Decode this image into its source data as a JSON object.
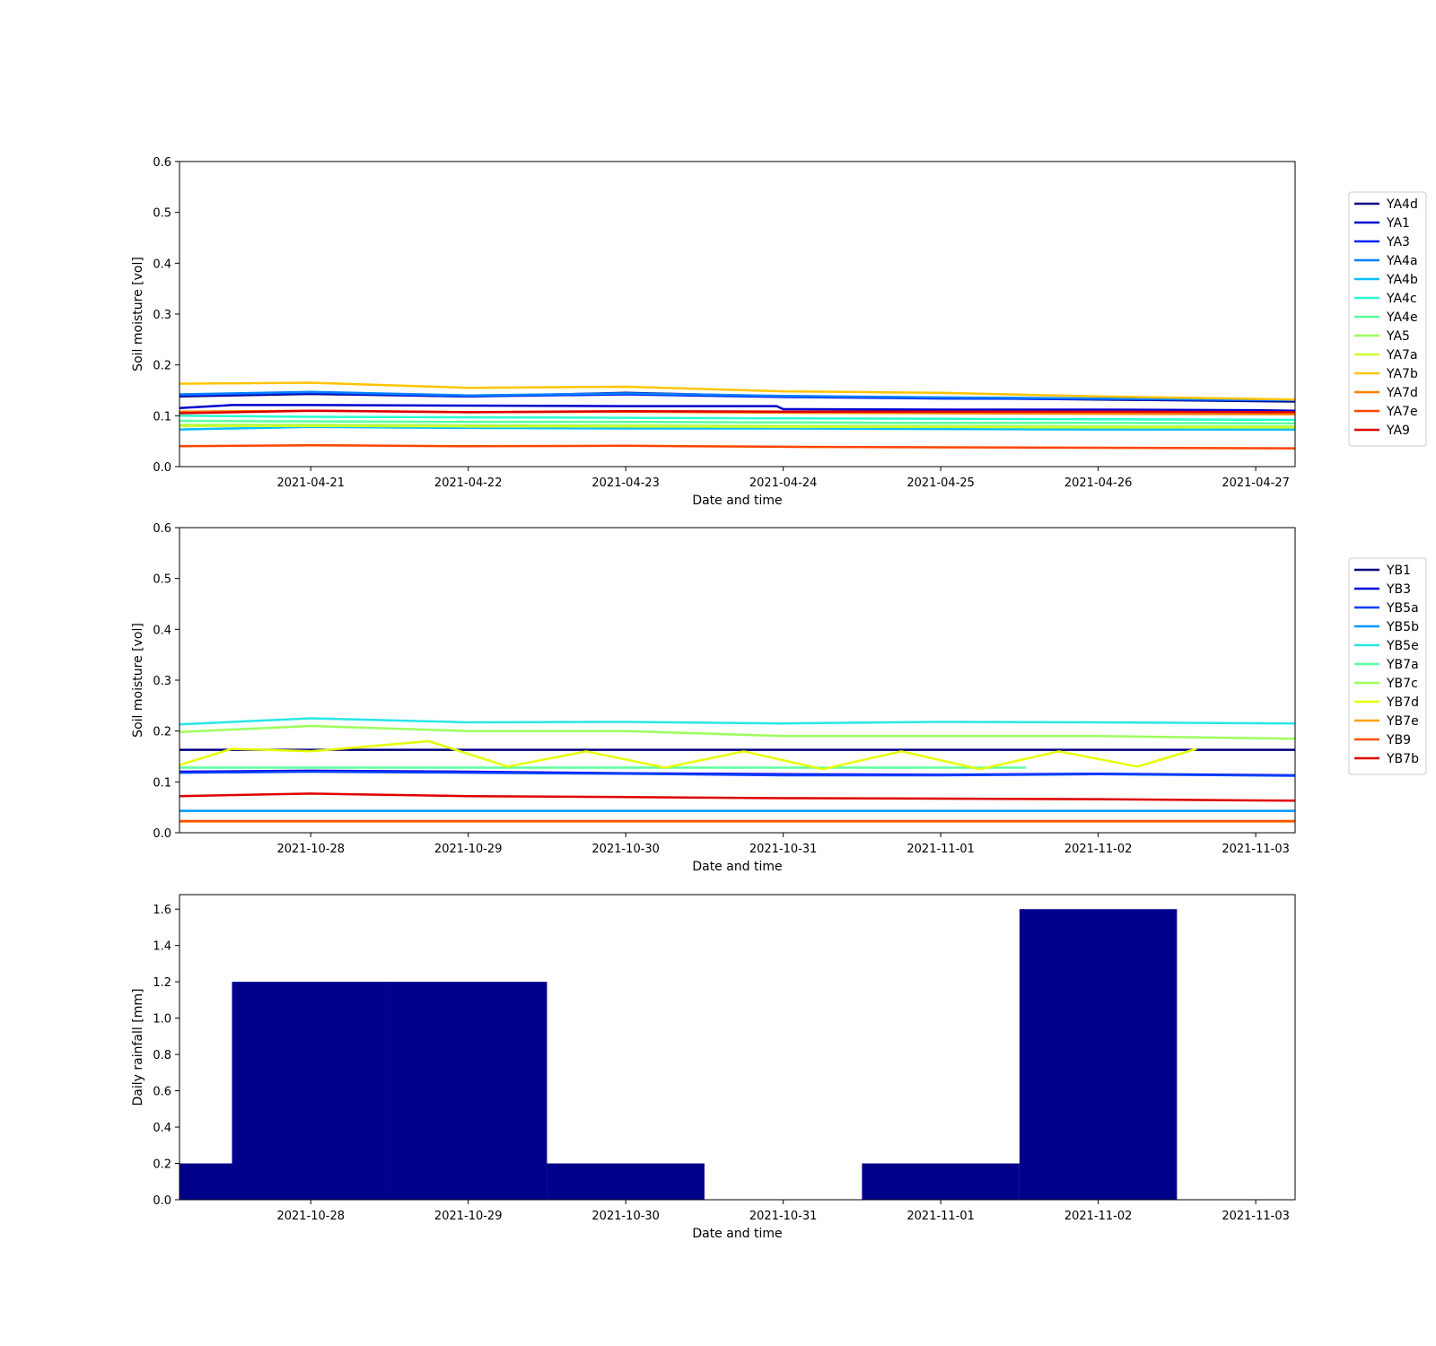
{
  "chart_data": [
    {
      "type": "line",
      "xlabel": "Date and time",
      "ylabel": "Soil moisture [vol]",
      "x_ticks": [
        "2021-04-21",
        "2021-04-22",
        "2021-04-23",
        "2021-04-24",
        "2021-04-25",
        "2021-04-26",
        "2021-04-27"
      ],
      "xlim": [
        "2021-04-20 04:00",
        "2021-04-27 06:00"
      ],
      "y_ticks": [
        0.0,
        0.1,
        0.2,
        0.3,
        0.4,
        0.5,
        0.6
      ],
      "ylim": [
        0.0,
        0.6
      ],
      "legend_position": "right",
      "series": [
        {
          "name": "YA4d",
          "color": "#000080",
          "x": [
            "2021-04-20 04:00",
            "2021-04-21 00:00",
            "2021-04-22 00:00",
            "2021-04-23 00:00",
            "2021-04-24 00:00",
            "2021-04-25 00:00",
            "2021-04-26 00:00",
            "2021-04-27 06:00"
          ],
          "values": [
            0.138,
            0.143,
            0.138,
            0.145,
            0.138,
            0.135,
            0.132,
            0.128
          ]
        },
        {
          "name": "YA1",
          "color": "#0000d0",
          "x": [
            "2021-04-20 04:00",
            "2021-04-20 12:00",
            "2021-04-21 00:00",
            "2021-04-22 00:00",
            "2021-04-23 00:00",
            "2021-04-23 23:00",
            "2021-04-24 00:00",
            "2021-04-25 00:00",
            "2021-04-26 00:00",
            "2021-04-27 00:00",
            "2021-04-27 06:00"
          ],
          "values": [
            0.115,
            0.121,
            0.121,
            0.12,
            0.119,
            0.119,
            0.113,
            0.112,
            0.112,
            0.111,
            0.11
          ]
        },
        {
          "name": "YA3",
          "color": "#0022ff",
          "x": [
            "2021-04-20 04:00",
            "2021-04-21 00:00",
            "2021-04-22 00:00",
            "2021-04-23 00:00",
            "2021-04-24 00:00",
            "2021-04-25 00:00",
            "2021-04-26 00:00",
            "2021-04-27 06:00"
          ],
          "values": [
            0.14,
            0.145,
            0.138,
            0.142,
            0.137,
            0.134,
            0.133,
            0.13
          ]
        },
        {
          "name": "YA4a",
          "color": "#0080ff",
          "x": [
            "2021-04-20 04:00",
            "2021-04-21 00:00",
            "2021-04-22 00:00",
            "2021-04-23 00:00",
            "2021-04-24 00:00",
            "2021-04-25 00:00",
            "2021-04-26 00:00",
            "2021-04-27 06:00"
          ],
          "values": [
            0.142,
            0.147,
            0.14,
            0.144,
            0.139,
            0.136,
            0.134,
            0.131
          ]
        },
        {
          "name": "YA4b",
          "color": "#00bfff",
          "x": [
            "2021-04-20 04:00",
            "2021-04-21 00:00",
            "2021-04-22 00:00",
            "2021-04-23 00:00",
            "2021-04-24 00:00",
            "2021-04-25 00:00",
            "2021-04-26 00:00",
            "2021-04-27 06:00"
          ],
          "values": [
            0.073,
            0.078,
            0.076,
            0.075,
            0.075,
            0.074,
            0.073,
            0.073
          ]
        },
        {
          "name": "YA4c",
          "color": "#29ffce",
          "x": [
            "2021-04-20 04:00",
            "2021-04-21 00:00",
            "2021-04-22 00:00",
            "2021-04-23 00:00",
            "2021-04-24 00:00",
            "2021-04-25 00:00",
            "2021-04-26 00:00",
            "2021-04-27 06:00"
          ],
          "values": [
            0.1,
            0.098,
            0.097,
            0.096,
            0.095,
            0.094,
            0.093,
            0.092
          ]
        },
        {
          "name": "YA4e",
          "color": "#5bffa0",
          "x": [
            "2021-04-20 04:00",
            "2021-04-21 00:00",
            "2021-04-22 00:00",
            "2021-04-23 00:00",
            "2021-04-24 00:00",
            "2021-04-25 00:00",
            "2021-04-26 00:00",
            "2021-04-27 06:00"
          ],
          "values": [
            0.09,
            0.089,
            0.088,
            0.088,
            0.087,
            0.086,
            0.086,
            0.085
          ]
        },
        {
          "name": "YA5",
          "color": "#9cff5b",
          "x": [
            "2021-04-20 04:00",
            "2021-04-21 00:00",
            "2021-04-22 00:00",
            "2021-04-23 00:00",
            "2021-04-24 00:00",
            "2021-04-25 00:00",
            "2021-04-26 00:00",
            "2021-04-27 06:00"
          ],
          "values": [
            0.082,
            0.082,
            0.081,
            0.081,
            0.08,
            0.08,
            0.079,
            0.079
          ]
        },
        {
          "name": "YA7a",
          "color": "#ceff29",
          "x": [
            "2021-04-20 04:00",
            "2021-04-21 00:00",
            "2021-04-22 00:00",
            "2021-04-23 00:00",
            "2021-04-24 00:00",
            "2021-04-25 00:00",
            "2021-04-26 00:00",
            "2021-04-27 06:00"
          ],
          "values": [
            0.08,
            0.08,
            0.079,
            0.079,
            0.078,
            0.078,
            0.077,
            0.077
          ]
        },
        {
          "name": "YA7b",
          "color": "#ffc400",
          "x": [
            "2021-04-20 04:00",
            "2021-04-21 00:00",
            "2021-04-22 00:00",
            "2021-04-23 00:00",
            "2021-04-24 00:00",
            "2021-04-25 00:00",
            "2021-04-26 00:00",
            "2021-04-27 06:00"
          ],
          "values": [
            0.163,
            0.165,
            0.155,
            0.157,
            0.148,
            0.145,
            0.138,
            0.132
          ]
        },
        {
          "name": "YA7d",
          "color": "#ff8000",
          "x": [
            "2021-04-20 04:00",
            "2021-04-21 00:00",
            "2021-04-22 00:00",
            "2021-04-23 00:00",
            "2021-04-24 00:00",
            "2021-04-25 00:00",
            "2021-04-26 00:00",
            "2021-04-27 06:00"
          ],
          "values": [
            0.108,
            0.11,
            0.107,
            0.108,
            0.106,
            0.105,
            0.104,
            0.103
          ]
        },
        {
          "name": "YA7e",
          "color": "#ff4500",
          "x": [
            "2021-04-20 04:00",
            "2021-04-21 00:00",
            "2021-04-22 00:00",
            "2021-04-23 00:00",
            "2021-04-24 00:00",
            "2021-04-25 00:00",
            "2021-04-26 00:00",
            "2021-04-27 06:00"
          ],
          "values": [
            0.04,
            0.042,
            0.04,
            0.041,
            0.039,
            0.038,
            0.037,
            0.036
          ]
        },
        {
          "name": "YA9",
          "color": "#e00000",
          "x": [
            "2021-04-20 04:00",
            "2021-04-21 00:00",
            "2021-04-22 00:00",
            "2021-04-23 00:00",
            "2021-04-24 00:00",
            "2021-04-25 00:00",
            "2021-04-26 00:00",
            "2021-04-27 06:00"
          ],
          "values": [
            0.105,
            0.11,
            0.107,
            0.109,
            0.108,
            0.108,
            0.108,
            0.107
          ]
        }
      ]
    },
    {
      "type": "line",
      "xlabel": "Date and time",
      "ylabel": "Soil moisture [vol]",
      "x_ticks": [
        "2021-10-28",
        "2021-10-29",
        "2021-10-30",
        "2021-10-31",
        "2021-11-01",
        "2021-11-02",
        "2021-11-03"
      ],
      "xlim": [
        "2021-10-27 04:00",
        "2021-11-03 06:00"
      ],
      "y_ticks": [
        0.0,
        0.1,
        0.2,
        0.3,
        0.4,
        0.5,
        0.6
      ],
      "ylim": [
        0.0,
        0.6
      ],
      "legend_position": "right",
      "series": [
        {
          "name": "YB1",
          "color": "#000080",
          "x": [
            "2021-10-27 04:00",
            "2021-11-03 06:00"
          ],
          "values": [
            0.163,
            0.163
          ]
        },
        {
          "name": "YB3",
          "color": "#0000e0",
          "x": [
            "2021-10-27 04:00",
            "2021-10-28 00:00",
            "2021-10-29 00:00",
            "2021-10-30 00:00",
            "2021-10-31 00:00",
            "2021-11-01 00:00",
            "2021-11-02 00:00",
            "2021-11-03 06:00"
          ],
          "values": [
            0.12,
            0.122,
            0.12,
            0.117,
            0.115,
            0.114,
            0.116,
            0.113
          ]
        },
        {
          "name": "YB5a",
          "color": "#0040ff",
          "x": [
            "2021-10-27 04:00",
            "2021-10-28 00:00",
            "2021-10-29 00:00",
            "2021-10-30 00:00",
            "2021-10-31 00:00",
            "2021-11-01 00:00",
            "2021-11-02 00:00",
            "2021-11-03 06:00"
          ],
          "values": [
            0.118,
            0.12,
            0.118,
            0.116,
            0.113,
            0.113,
            0.115,
            0.112
          ]
        },
        {
          "name": "YB5b",
          "color": "#0096ff",
          "x": [
            "2021-10-27 04:00",
            "2021-11-03 06:00"
          ],
          "values": [
            0.043,
            0.043
          ]
        },
        {
          "name": "YB5e",
          "color": "#29e6e6",
          "x": [
            "2021-10-27 04:00",
            "2021-10-28 00:00",
            "2021-10-29 00:00",
            "2021-10-30 00:00",
            "2021-10-31 00:00",
            "2021-11-01 00:00",
            "2021-11-02 00:00",
            "2021-11-03 06:00"
          ],
          "values": [
            0.213,
            0.225,
            0.217,
            0.218,
            0.215,
            0.218,
            0.217,
            0.215
          ]
        },
        {
          "name": "YB7a",
          "color": "#5bffa0",
          "x": [
            "2021-10-27 04:00",
            "2021-11-01 13:00"
          ],
          "values": [
            0.128,
            0.128
          ]
        },
        {
          "name": "YB7c",
          "color": "#9cff5b",
          "x": [
            "2021-10-27 04:00",
            "2021-10-28 00:00",
            "2021-10-29 00:00",
            "2021-10-30 00:00",
            "2021-10-31 00:00",
            "2021-11-01 00:00",
            "2021-11-02 00:00",
            "2021-11-03 06:00"
          ],
          "values": [
            0.198,
            0.21,
            0.2,
            0.2,
            0.19,
            0.19,
            0.19,
            0.185
          ]
        },
        {
          "name": "YB7d",
          "color": "#e6ff00",
          "x": [
            "2021-10-27 04:00",
            "2021-10-27 12:00",
            "2021-10-28 00:00",
            "2021-10-28 18:00",
            "2021-10-29 06:00",
            "2021-10-29 18:00",
            "2021-10-30 06:00",
            "2021-10-30 18:00",
            "2021-10-31 06:00",
            "2021-10-31 18:00",
            "2021-11-01 06:00",
            "2021-11-01 18:00",
            "2021-11-02 06:00",
            "2021-11-02 15:00"
          ],
          "values": [
            0.133,
            0.165,
            0.16,
            0.18,
            0.13,
            0.16,
            0.128,
            0.16,
            0.125,
            0.16,
            0.125,
            0.16,
            0.13,
            0.165
          ]
        },
        {
          "name": "YB7e",
          "color": "#ffa000",
          "x": [
            "2021-10-27 04:00",
            "2021-11-03 06:00"
          ],
          "values": [
            0.022,
            0.022
          ]
        },
        {
          "name": "YB9",
          "color": "#ff5000",
          "x": [
            "2021-10-27 04:00",
            "2021-11-03 06:00"
          ],
          "values": [
            0.023,
            0.023
          ]
        },
        {
          "name": "YB7b",
          "color": "#e00000",
          "x": [
            "2021-10-27 04:00",
            "2021-10-28 00:00",
            "2021-10-29 00:00",
            "2021-10-30 00:00",
            "2021-10-31 00:00",
            "2021-11-01 00:00",
            "2021-11-02 00:00",
            "2021-11-03 06:00"
          ],
          "values": [
            0.072,
            0.077,
            0.072,
            0.07,
            0.068,
            0.067,
            0.066,
            0.063
          ]
        }
      ]
    },
    {
      "type": "bar",
      "xlabel": "Date and time",
      "ylabel": "Daily rainfall [mm]",
      "x_ticks": [
        "2021-10-28",
        "2021-10-29",
        "2021-10-30",
        "2021-10-31",
        "2021-11-01",
        "2021-11-02",
        "2021-11-03"
      ],
      "xlim": [
        "2021-10-27 04:00",
        "2021-11-03 06:00"
      ],
      "y_ticks": [
        0.0,
        0.2,
        0.4,
        0.6,
        0.8,
        1.0,
        1.2,
        1.4,
        1.6
      ],
      "ylim": [
        0.0,
        1.68
      ],
      "color": "#00008b",
      "categories": [
        "2021-10-27",
        "2021-10-28",
        "2021-10-29",
        "2021-10-30",
        "2021-10-31",
        "2021-11-01",
        "2021-11-02"
      ],
      "values": [
        0.2,
        1.2,
        1.2,
        0.2,
        0.0,
        0.2,
        1.6
      ]
    }
  ]
}
